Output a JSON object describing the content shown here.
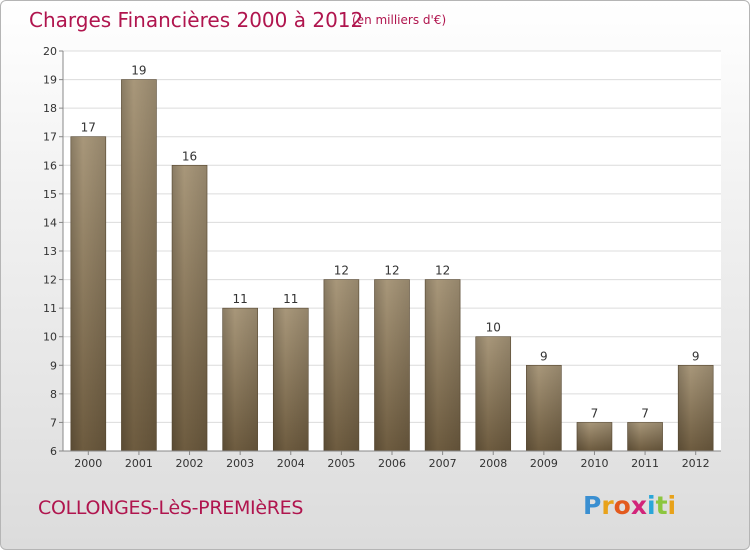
{
  "header": {
    "title": "Charges Financières 2000 à 2012",
    "subtitle": "(en milliers d'€)"
  },
  "footer": {
    "commune": "COLLONGES-LèS-PREMIèRES",
    "logo_letters": [
      "P",
      "r",
      "o",
      "x",
      "i",
      "t",
      "i"
    ],
    "logo_colors": [
      "#3a8fd1",
      "#e8a21a",
      "#e35a1d",
      "#d2247a",
      "#2aa6d8",
      "#8cc63f",
      "#e8a21a"
    ]
  },
  "chart_data": {
    "type": "bar",
    "categories": [
      "2000",
      "2001",
      "2002",
      "2003",
      "2004",
      "2005",
      "2006",
      "2007",
      "2008",
      "2009",
      "2010",
      "2011",
      "2012"
    ],
    "values": [
      17,
      19,
      16,
      11,
      11,
      12,
      12,
      12,
      10,
      9,
      7,
      7,
      9
    ],
    "data_labels": [
      "17",
      "19",
      "16",
      "11",
      "11",
      "12",
      "12",
      "12",
      "10",
      "9",
      "7",
      "7",
      "9"
    ],
    "ylim": [
      6,
      20
    ],
    "yticks": [
      6,
      7,
      8,
      9,
      10,
      11,
      12,
      13,
      14,
      15,
      16,
      17,
      18,
      19,
      20
    ],
    "grid": true,
    "colors": {
      "bar_light": "#a8977a",
      "bar_dark": "#6d5b3f",
      "grid": "#dcdcdc",
      "axis": "#888888",
      "label": "#333333"
    }
  }
}
